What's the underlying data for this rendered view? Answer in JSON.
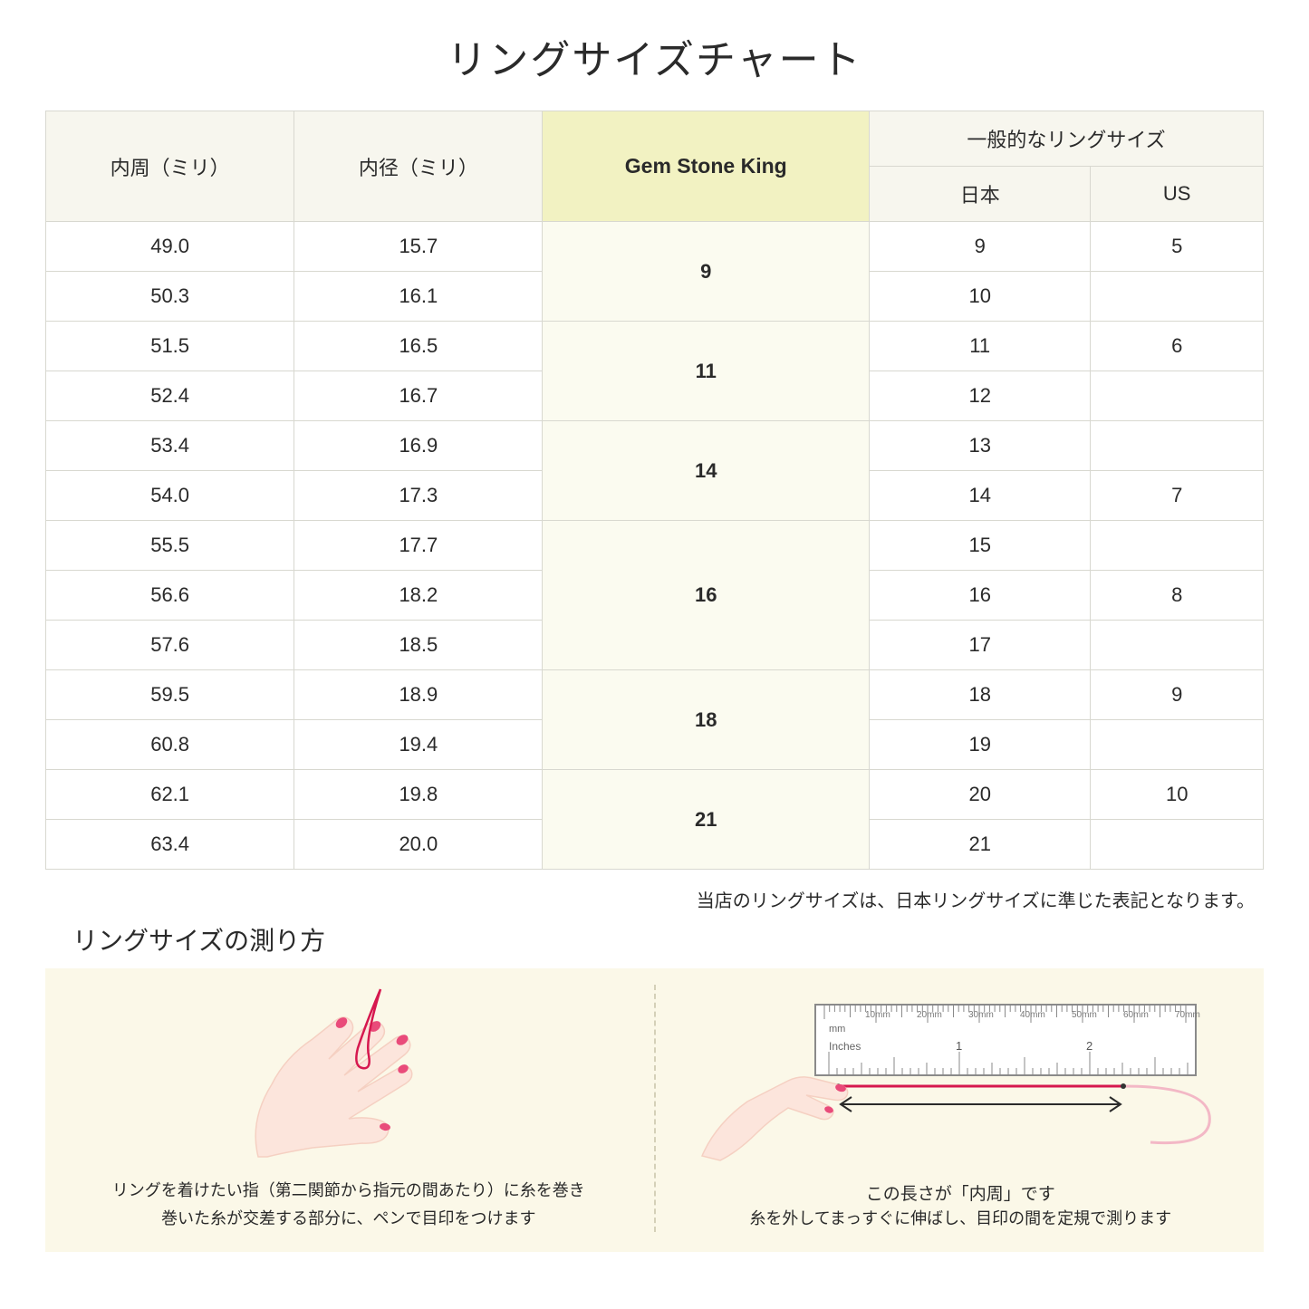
{
  "title": "リングサイズチャート",
  "headers": {
    "circumference": "内周（ミリ）",
    "diameter": "内径（ミリ）",
    "gsk": "Gem Stone King",
    "general": "一般的なリングサイズ",
    "japan": "日本",
    "us": "US"
  },
  "groups": [
    {
      "gsk": "9",
      "rows": [
        {
          "circ": "49.0",
          "dia": "15.7",
          "jp": "9",
          "us": "5"
        },
        {
          "circ": "50.3",
          "dia": "16.1",
          "jp": "10",
          "us": ""
        }
      ]
    },
    {
      "gsk": "11",
      "rows": [
        {
          "circ": "51.5",
          "dia": "16.5",
          "jp": "11",
          "us": "6"
        },
        {
          "circ": "52.4",
          "dia": "16.7",
          "jp": "12",
          "us": ""
        }
      ]
    },
    {
      "gsk": "14",
      "rows": [
        {
          "circ": "53.4",
          "dia": "16.9",
          "jp": "13",
          "us": ""
        },
        {
          "circ": "54.0",
          "dia": "17.3",
          "jp": "14",
          "us": "7"
        }
      ]
    },
    {
      "gsk": "16",
      "rows": [
        {
          "circ": "55.5",
          "dia": "17.7",
          "jp": "15",
          "us": ""
        },
        {
          "circ": "56.6",
          "dia": "18.2",
          "jp": "16",
          "us": "8"
        },
        {
          "circ": "57.6",
          "dia": "18.5",
          "jp": "17",
          "us": ""
        }
      ]
    },
    {
      "gsk": "18",
      "rows": [
        {
          "circ": "59.5",
          "dia": "18.9",
          "jp": "18",
          "us": "9"
        },
        {
          "circ": "60.8",
          "dia": "19.4",
          "jp": "19",
          "us": ""
        }
      ]
    },
    {
      "gsk": "21",
      "rows": [
        {
          "circ": "62.1",
          "dia": "19.8",
          "jp": "20",
          "us": "10"
        },
        {
          "circ": "63.4",
          "dia": "20.0",
          "jp": "21",
          "us": ""
        }
      ]
    }
  ],
  "note": "当店のリングサイズは、日本リングサイズに準じた表記となります。",
  "measure": {
    "title": "リングサイズの測り方",
    "left_caption": "リングを着けたい指（第二関節から指元の間あたり）に糸を巻き\n巻いた糸が交差する部分に、ペンで目印をつけます",
    "right_arrow_label": "この長さが「内周」です",
    "right_caption": "糸を外してまっすぐに伸ばし、目印の間を定規で測ります",
    "ruler": {
      "mm_label": "mm",
      "mm_ticks": [
        "10mm",
        "20mm",
        "30mm",
        "40mm",
        "50mm",
        "60mm",
        "70mm"
      ],
      "inch_label": "Inches",
      "inch_ticks": [
        "1",
        "2"
      ]
    }
  },
  "colors": {
    "header_bg": "#f7f6ee",
    "gsk_header_bg": "#f2f2c2",
    "gsk_cell_bg": "#fbfbf0",
    "border": "#d8d8d0",
    "measure_bg": "#fbf8e8",
    "thread": "#d6184f",
    "skin": "#fce5dc",
    "skin_dark": "#f5d0c2",
    "nail": "#e94b7a",
    "ruler_body": "#ffffff",
    "ruler_stroke": "#8a8a8a"
  }
}
